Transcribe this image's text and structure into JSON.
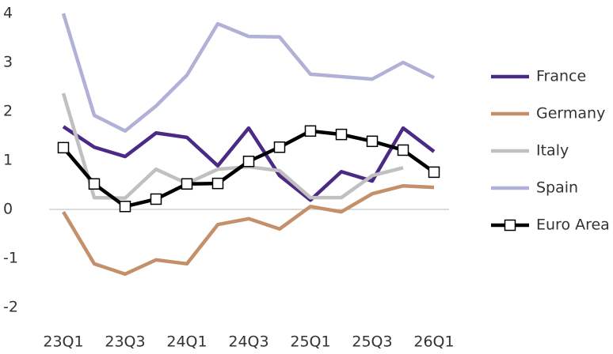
{
  "chart_data": {
    "type": "line",
    "categories": [
      "23Q1",
      null,
      "23Q3",
      null,
      "24Q1",
      null,
      "24Q3",
      null,
      "25Q1",
      null,
      "25Q3",
      null,
      "26Q1"
    ],
    "series": [
      {
        "name": "France",
        "color": "#4b2a86",
        "values": [
          1.69,
          1.27,
          1.08,
          1.56,
          1.47,
          0.89,
          1.66,
          0.69,
          0.19,
          0.77,
          0.58,
          1.66,
          1.18
        ]
      },
      {
        "name": "Germany",
        "color": "#c4906a",
        "values": [
          -0.05,
          -1.11,
          -1.32,
          -1.03,
          -1.11,
          -0.31,
          -0.19,
          -0.4,
          0.06,
          -0.05,
          0.32,
          0.48,
          0.45
        ]
      },
      {
        "name": "Italy",
        "color": "#c0c0c0",
        "values": [
          2.37,
          0.24,
          0.23,
          0.82,
          0.53,
          0.82,
          0.87,
          0.79,
          0.24,
          0.24,
          0.69,
          0.85,
          null
        ]
      },
      {
        "name": "Spain",
        "color": "#b1b1d8",
        "values": [
          4.0,
          1.92,
          1.6,
          2.11,
          2.74,
          3.79,
          3.53,
          3.52,
          2.76,
          2.71,
          2.66,
          3.0,
          2.69
        ]
      },
      {
        "name": "Euro Area",
        "color": "#000000",
        "marker": "square",
        "values": [
          1.26,
          0.52,
          0.06,
          0.21,
          0.52,
          0.53,
          0.98,
          1.27,
          1.6,
          1.53,
          1.39,
          1.21,
          0.76
        ]
      }
    ],
    "ylim": [
      -2,
      4
    ],
    "yticks": [
      -2,
      -1,
      0,
      1,
      2,
      3,
      4
    ],
    "grid": false,
    "legend": "right"
  }
}
